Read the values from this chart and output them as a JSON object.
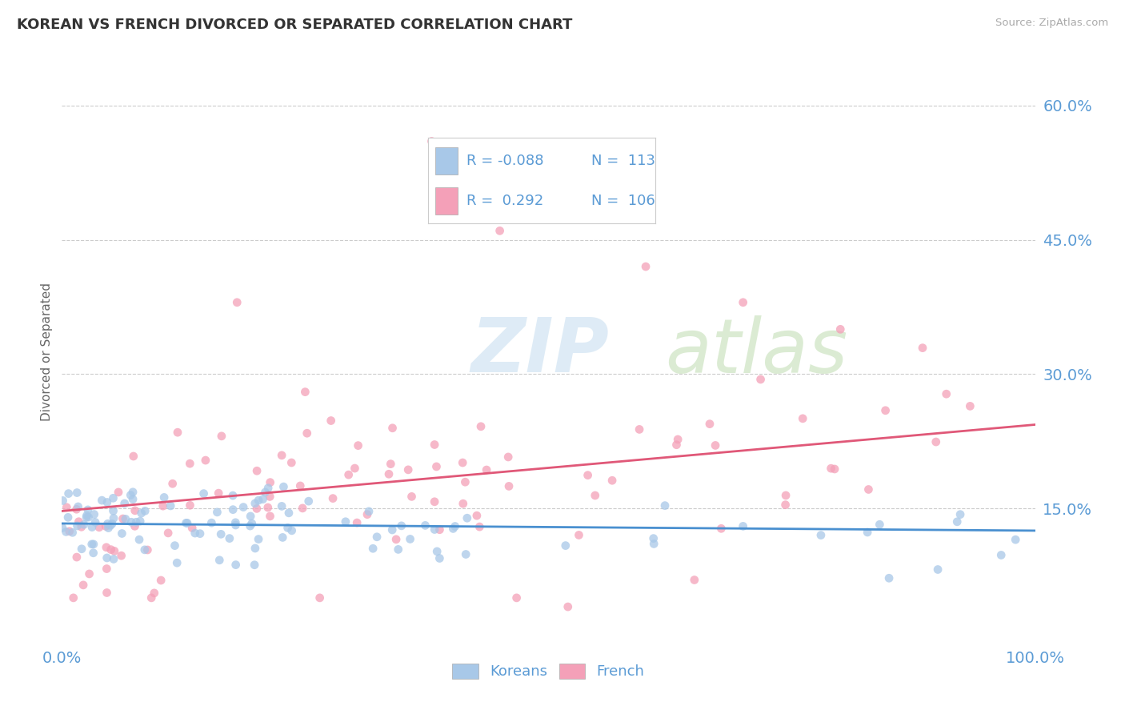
{
  "title": "KOREAN VS FRENCH DIVORCED OR SEPARATED CORRELATION CHART",
  "source_text": "Source: ZipAtlas.com",
  "ylabel": "Divorced or Separated",
  "x_min": 0.0,
  "x_max": 1.0,
  "y_min": 0.0,
  "y_max": 0.65,
  "y_ticks": [
    0.15,
    0.3,
    0.45,
    0.6
  ],
  "y_tick_labels": [
    "15.0%",
    "30.0%",
    "45.0%",
    "60.0%"
  ],
  "x_tick_labels": [
    "0.0%",
    "100.0%"
  ],
  "korean_R": -0.088,
  "korean_N": 113,
  "french_R": 0.292,
  "french_N": 106,
  "korean_color": "#a8c8e8",
  "french_color": "#f4a0b8",
  "korean_line_color": "#4a90d0",
  "french_line_color": "#e05878",
  "background_color": "#ffffff",
  "title_color": "#333333",
  "axis_label_color": "#5b9bd5",
  "source_color": "#aaaaaa",
  "watermark_zip_color": "#c8dff0",
  "watermark_atlas_color": "#d8e8c0",
  "grid_color": "#cccccc"
}
